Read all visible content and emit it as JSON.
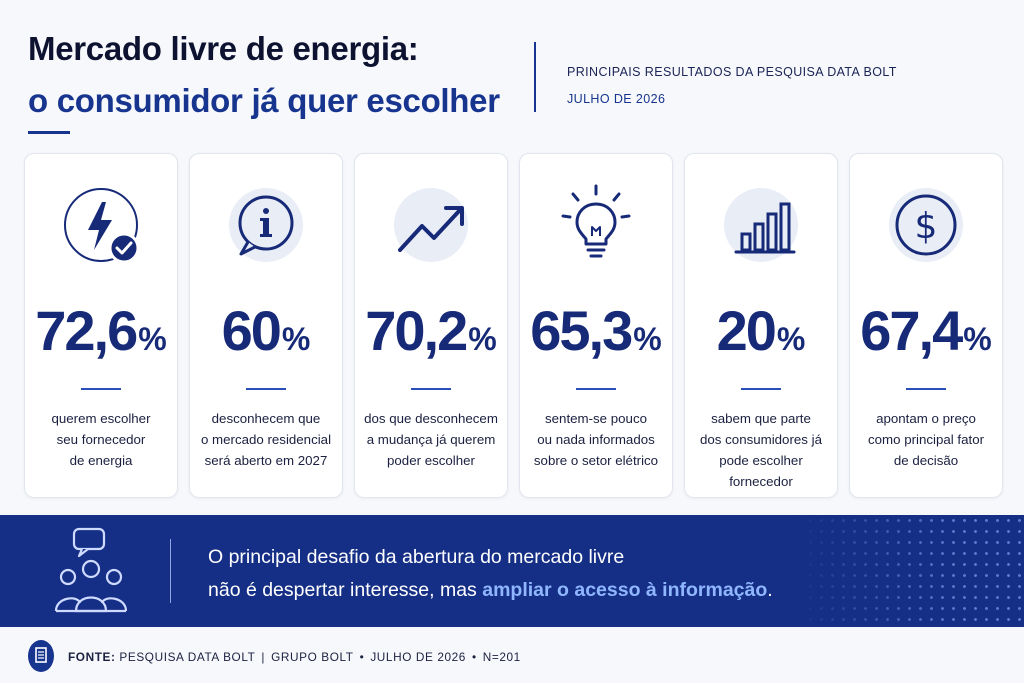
{
  "header": {
    "title_line1": "Mercado livre de energia:",
    "title_line2": "o consumidor já quer escolher",
    "subtitle": "PRINCIPAIS RESULTADOS DA PESQUISA DATA BOLT",
    "date": "JULHO DE 2026"
  },
  "cards": [
    {
      "icon": "lightning-check-icon",
      "number": "72,6",
      "unit": "%",
      "desc_lines": [
        "querem escolher",
        "seu fornecedor",
        "de energia"
      ]
    },
    {
      "icon": "info-bubble-icon",
      "number": "60",
      "unit": "%",
      "desc_lines": [
        "desconhecem que",
        "o mercado residencial",
        "será aberto em 2027"
      ]
    },
    {
      "icon": "trend-up-icon",
      "number": "70,2",
      "unit": "%",
      "desc_lines": [
        "dos que desconhecem",
        "a mudança já querem",
        "poder escolher"
      ]
    },
    {
      "icon": "lightbulb-icon",
      "number": "65,3",
      "unit": "%",
      "desc_lines": [
        "sentem-se pouco",
        "ou nada informados",
        "sobre o setor elétrico"
      ]
    },
    {
      "icon": "bar-chart-icon",
      "number": "20",
      "unit": "%",
      "desc_lines": [
        "sabem que parte",
        "dos consumidores já",
        "pode escolher fornecedor"
      ]
    },
    {
      "icon": "dollar-icon",
      "number": "67,4",
      "unit": "%",
      "desc_lines": [
        "apontam o preço",
        "como principal fator",
        "de decisão"
      ]
    }
  ],
  "banner": {
    "line1": "O principal desafio da abertura do mercado livre",
    "line2_plain": "não é despertar interesse, mas ",
    "line2_highlight": "ampliar o acesso à informação",
    "line2_end": ".",
    "icon": "people-chat-icon"
  },
  "footer": {
    "source_label": "FONTE:",
    "source": "PESQUISA DATA BOLT",
    "group": "GRUPO BOLT",
    "date": "JULHO DE 2026",
    "sample": "N=201",
    "icon": "document-icon"
  },
  "colors": {
    "primary": "#17358f",
    "dark_text": "#0d1230",
    "banner_bg": "#152f86",
    "highlight": "#8fb6ff"
  }
}
